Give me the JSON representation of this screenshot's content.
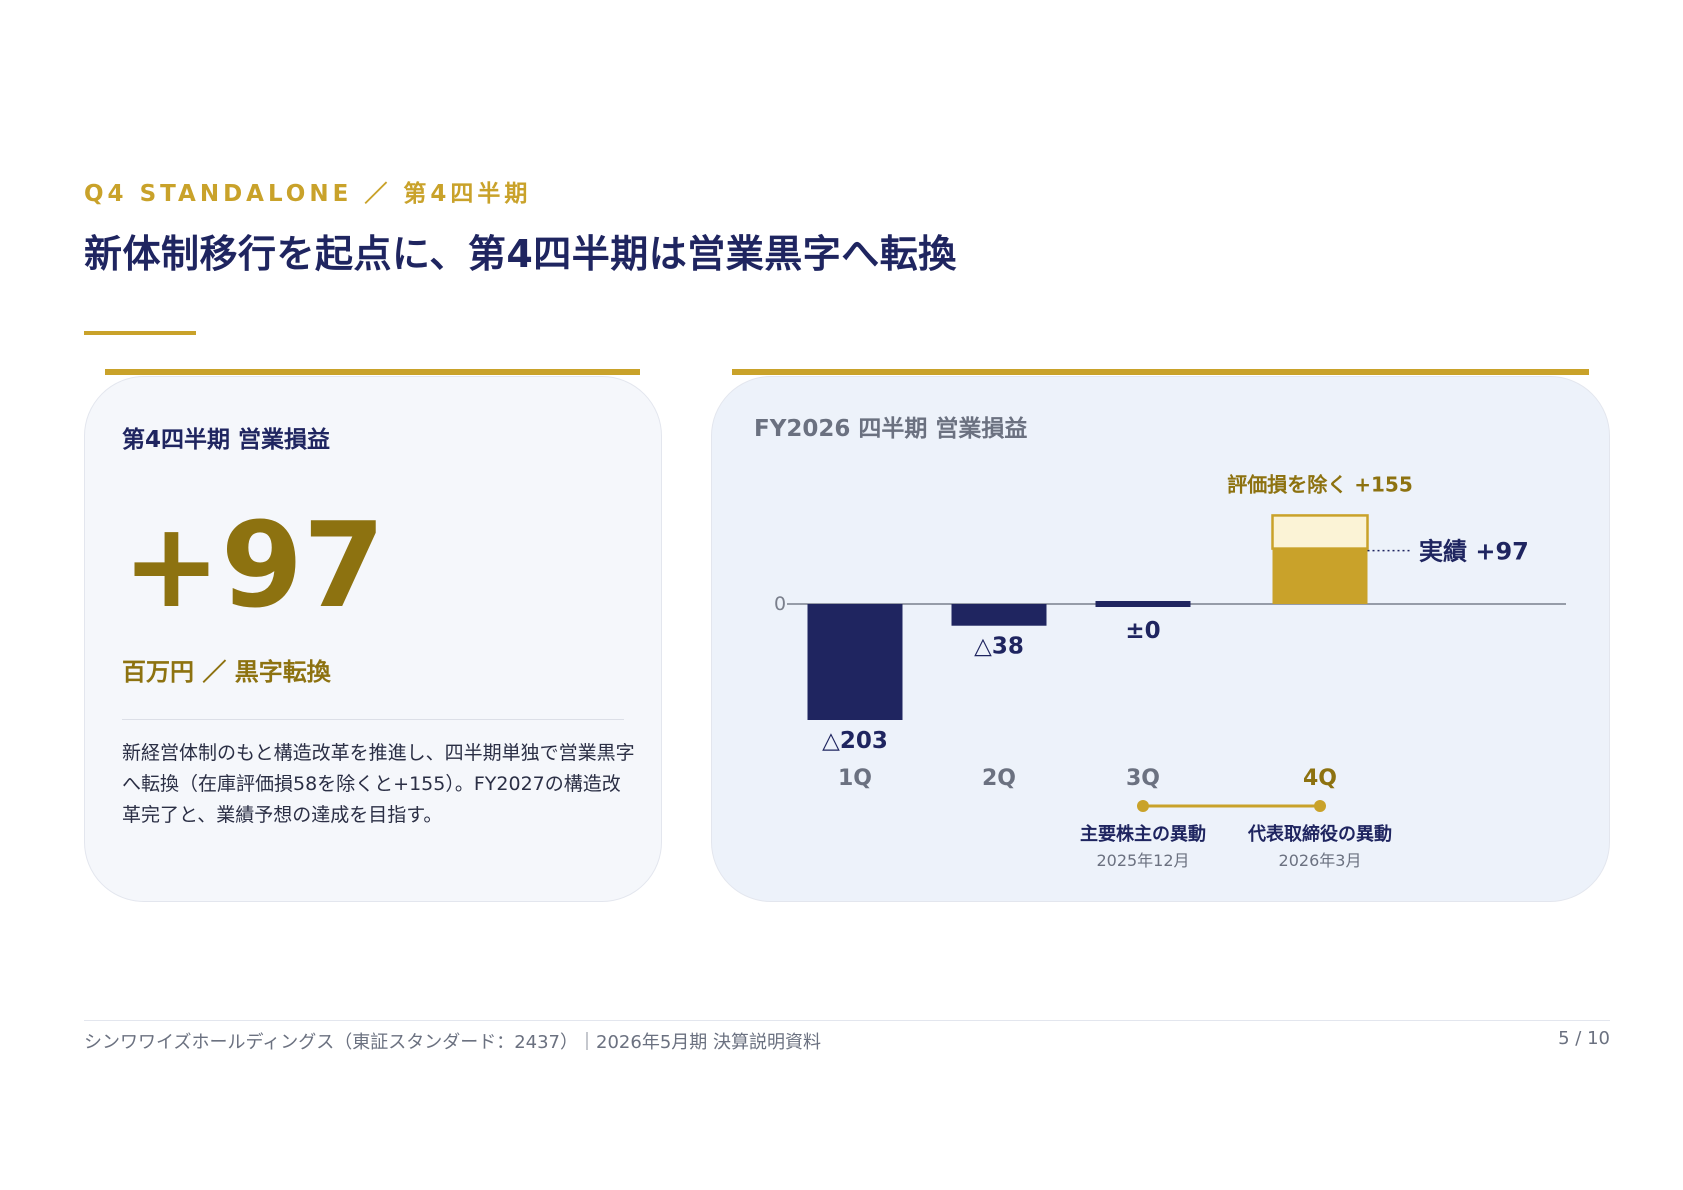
{
  "header": {
    "eyebrow": "Q4 STANDALONE ／ 第4四半期",
    "title": "新体制移行を起点に、第4四半期は営業黒字へ転換"
  },
  "left_card": {
    "heading": "第4四半期 営業損益",
    "value": "+97",
    "unit": "百万円 ／ 黒字転換",
    "description_lines": [
      "新経営体制のもと構造改革を推進し、四半期単独で営業黒字",
      "へ転換（在庫評価損58を除くと+155）。FY2027の構造改",
      "革完了と、業績予想の達成を目指す。"
    ]
  },
  "right_card": {
    "heading": "FY2026 四半期 営業損益"
  },
  "chart_data": {
    "type": "bar",
    "categories": [
      "1Q",
      "2Q",
      "3Q",
      "4Q"
    ],
    "values": [
      -203,
      -38,
      0,
      97
    ],
    "value_labels": [
      "△203",
      "△38",
      "±0",
      ""
    ],
    "zero_label": "0",
    "extra_bar": {
      "category": "4Q",
      "value": 155,
      "label": "評価損を除く +155"
    },
    "actual_label": "実績 +97",
    "colors": {
      "negative": "#1f2560",
      "positive": "#c9a22a",
      "excluded": "#fbf3d6",
      "axis": "#7a7f8c"
    },
    "events": [
      {
        "label": "主要株主の異動",
        "date": "2025年12月",
        "category": "3Q"
      },
      {
        "label": "代表取締役の異動",
        "date": "2026年3月",
        "category": "4Q"
      }
    ]
  },
  "footer": {
    "left": "シンワワイズホールディングス（東証スタンダード：2437）｜2026年5月期 決算説明資料",
    "right": "5 / 10"
  }
}
